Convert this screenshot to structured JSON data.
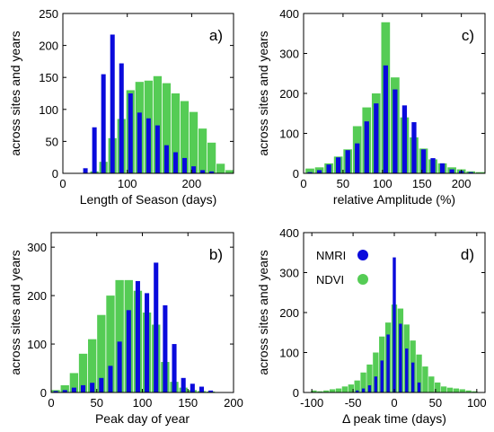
{
  "colors": {
    "green": "#55CC55",
    "blue": "#0A0ADC",
    "axis": "#000000"
  },
  "chart_data": [
    {
      "id": "a",
      "type": "bar",
      "panel_label": "a)",
      "xlabel": "Length of Season (days)",
      "ylabel": "across sites and years",
      "xlim": [
        0,
        265
      ],
      "ylim": [
        0,
        250
      ],
      "xticks": [
        0,
        100,
        200
      ],
      "yticks": [
        0,
        50,
        100,
        150,
        200,
        250
      ],
      "bin_width": 14,
      "series": [
        {
          "color": "green",
          "x": [
            35,
            49,
            63,
            77,
            91,
            105,
            119,
            133,
            147,
            161,
            175,
            189,
            203,
            217,
            231,
            245,
            259
          ],
          "values": [
            0,
            3,
            18,
            55,
            85,
            130,
            143,
            145,
            152,
            141,
            125,
            113,
            96,
            70,
            48,
            15,
            5
          ]
        },
        {
          "color": "blue",
          "x": [
            35,
            49,
            63,
            77,
            91,
            105,
            119,
            133,
            147,
            161,
            175,
            189,
            203,
            217,
            231,
            245
          ],
          "values": [
            8,
            72,
            155,
            217,
            172,
            125,
            95,
            86,
            75,
            44,
            33,
            24,
            11,
            5,
            3,
            0
          ]
        }
      ]
    },
    {
      "id": "c",
      "type": "bar",
      "panel_label": "c)",
      "xlabel": "relative Amplitude (%)",
      "ylabel": "across sites and years",
      "xlim": [
        0,
        230
      ],
      "ylim": [
        0,
        400
      ],
      "xticks": [
        0,
        50,
        100,
        150,
        200
      ],
      "yticks": [
        0,
        100,
        200,
        300,
        400
      ],
      "bin_width": 12,
      "series": [
        {
          "color": "green",
          "x": [
            8,
            20,
            32,
            44,
            56,
            68,
            80,
            92,
            104,
            116,
            128,
            140,
            152,
            164,
            176,
            188,
            200,
            212,
            224
          ],
          "values": [
            12,
            15,
            25,
            42,
            60,
            118,
            165,
            200,
            378,
            240,
            140,
            90,
            62,
            35,
            25,
            15,
            10,
            5,
            3
          ]
        },
        {
          "color": "blue",
          "x": [
            8,
            20,
            32,
            44,
            56,
            68,
            80,
            92,
            104,
            116,
            128,
            140,
            152,
            164,
            176,
            188,
            200,
            212,
            224
          ],
          "values": [
            3,
            8,
            22,
            40,
            58,
            75,
            130,
            175,
            270,
            210,
            170,
            128,
            60,
            38,
            25,
            10,
            6,
            3,
            1
          ]
        }
      ]
    },
    {
      "id": "b",
      "type": "bar",
      "panel_label": "b)",
      "xlabel": "Peak day of year",
      "ylabel": "across sites and years",
      "xlim": [
        0,
        200
      ],
      "ylim": [
        0,
        330
      ],
      "xticks": [
        0,
        50,
        100,
        150,
        200
      ],
      "yticks": [
        0,
        100,
        200,
        300
      ],
      "bin_width": 10,
      "series": [
        {
          "color": "green",
          "x": [
            5,
            15,
            25,
            35,
            45,
            55,
            65,
            75,
            85,
            95,
            105,
            115,
            125,
            135,
            145,
            155,
            165,
            175
          ],
          "values": [
            5,
            15,
            40,
            80,
            110,
            160,
            200,
            232,
            232,
            210,
            165,
            140,
            63,
            22,
            10,
            5,
            3,
            2
          ]
        },
        {
          "color": "blue",
          "x": [
            5,
            15,
            25,
            35,
            45,
            55,
            65,
            75,
            85,
            95,
            105,
            115,
            125,
            135,
            145,
            155,
            165,
            175
          ],
          "values": [
            3,
            5,
            10,
            15,
            20,
            30,
            55,
            105,
            170,
            230,
            205,
            268,
            180,
            100,
            30,
            18,
            12,
            4
          ]
        }
      ]
    },
    {
      "id": "d",
      "type": "bar",
      "panel_label": "d)",
      "xlabel": "Δ peak time (days)",
      "ylabel": "across sites and years",
      "xlim": [
        -110,
        110
      ],
      "ylim": [
        0,
        400
      ],
      "xticks": [
        -100,
        -50,
        0,
        50,
        100
      ],
      "yticks": [
        0,
        100,
        200,
        300,
        400
      ],
      "bin_width": 7.5,
      "legend": {
        "position": "top-left",
        "entries": [
          {
            "label": "NMRI",
            "color": "blue"
          },
          {
            "label": "NDVI",
            "color": "green"
          }
        ]
      },
      "series": [
        {
          "color": "green",
          "x": [
            -97.5,
            -90,
            -82.5,
            -75,
            -67.5,
            -60,
            -52.5,
            -45,
            -37.5,
            -30,
            -22.5,
            -15,
            -7.5,
            0,
            7.5,
            15,
            22.5,
            30,
            37.5,
            45,
            52.5,
            60,
            67.5,
            75,
            82.5,
            90,
            97.5
          ],
          "values": [
            5,
            3,
            5,
            8,
            10,
            15,
            20,
            30,
            50,
            70,
            100,
            140,
            175,
            220,
            210,
            170,
            130,
            95,
            65,
            40,
            25,
            15,
            12,
            10,
            8,
            5,
            3
          ]
        },
        {
          "color": "blue",
          "x": [
            -45,
            -37.5,
            -30,
            -22.5,
            -15,
            -7.5,
            0,
            7.5,
            15,
            22.5,
            30
          ],
          "values": [
            5,
            10,
            18,
            40,
            80,
            145,
            338,
            172,
            110,
            75,
            25
          ]
        }
      ]
    }
  ]
}
